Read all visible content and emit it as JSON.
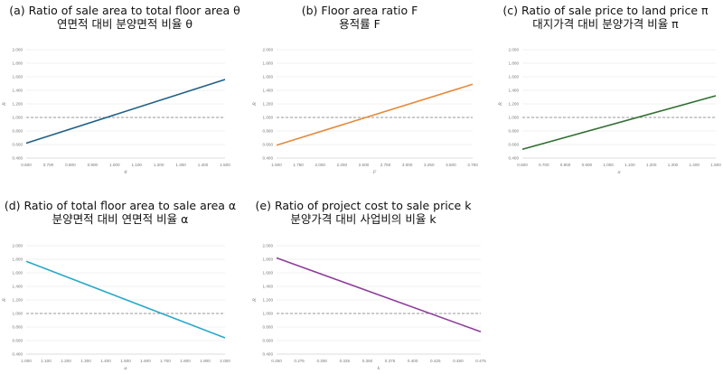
{
  "chart_data": [
    {
      "type": "line",
      "title": "(a) Ratio of sale area to total floor area θ",
      "subtitle": "연면적 대비 분양면적 비율 θ",
      "xlabel": "θ",
      "ylabel": "R",
      "x": [
        0.6,
        1.5
      ],
      "y": [
        0.62,
        1.56
      ],
      "xlim": [
        0.6,
        1.5
      ],
      "ylim": [
        0.4,
        2.0
      ],
      "x_ticks": [
        "0.600",
        "0.700",
        "0.800",
        "0.900",
        "1.000",
        "1.100",
        "1.200",
        "1.300",
        "1.400",
        "1.500"
      ],
      "y_ticks": [
        "0.400",
        "0.600",
        "0.800",
        "1.000",
        "1.200",
        "1.400",
        "1.600",
        "1.800",
        "2.000"
      ],
      "reference_line": 1.0,
      "color": "#1f5f86"
    },
    {
      "type": "line",
      "title": "(b) Floor area ratio F",
      "subtitle": "용적률 F",
      "xlabel": "F",
      "ylabel": "R",
      "x": [
        1.5,
        3.75
      ],
      "y": [
        0.59,
        1.49
      ],
      "xlim": [
        1.5,
        3.75
      ],
      "ylim": [
        0.4,
        2.0
      ],
      "x_ticks": [
        "1.500",
        "1.750",
        "2.000",
        "2.250",
        "2.500",
        "2.750",
        "3.000",
        "3.250",
        "3.500",
        "3.750"
      ],
      "y_ticks": [
        "0.400",
        "0.600",
        "0.800",
        "1.000",
        "1.200",
        "1.400",
        "1.600",
        "1.800",
        "2.000"
      ],
      "reference_line": 1.0,
      "color": "#e58a3a"
    },
    {
      "type": "line",
      "title": "(c) Ratio of sale price to land price π",
      "subtitle": "대지가격 대비 분양가격 비율 π",
      "xlabel": "π",
      "ylabel": "R",
      "x": [
        0.6,
        1.5
      ],
      "y": [
        0.53,
        1.32
      ],
      "xlim": [
        0.6,
        1.5
      ],
      "ylim": [
        0.4,
        2.0
      ],
      "x_ticks": [
        "0.600",
        "0.700",
        "0.800",
        "0.900",
        "1.000",
        "1.100",
        "1.200",
        "1.300",
        "1.400",
        "1.500"
      ],
      "y_ticks": [
        "0.400",
        "0.600",
        "0.800",
        "1.000",
        "1.200",
        "1.400",
        "1.600",
        "1.800",
        "2.000"
      ],
      "reference_line": 1.0,
      "color": "#2f6e2f"
    },
    {
      "type": "line",
      "title": "(d) Ratio of total floor area to sale area α",
      "subtitle": "분양면적 대비 연면적 비율 α",
      "xlabel": "α",
      "ylabel": "R",
      "x": [
        1.0,
        2.0
      ],
      "y": [
        1.77,
        0.64
      ],
      "xlim": [
        1.0,
        2.0
      ],
      "ylim": [
        0.4,
        2.0
      ],
      "x_ticks": [
        "1.000",
        "1.100",
        "1.200",
        "1.300",
        "1.400",
        "1.500",
        "1.600",
        "1.700",
        "1.800",
        "1.900",
        "2.000"
      ],
      "y_ticks": [
        "0.400",
        "0.600",
        "0.800",
        "1.000",
        "1.200",
        "1.400",
        "1.600",
        "1.800",
        "2.000"
      ],
      "reference_line": 1.0,
      "color": "#2aa9c7"
    },
    {
      "type": "line",
      "title": "(e) Ratio of project cost to sale price k",
      "subtitle": "분양가격 대비 사업비의 비율 k",
      "xlabel": "k",
      "ylabel": "R",
      "x": [
        0.25,
        0.475
      ],
      "y": [
        1.82,
        0.73
      ],
      "xlim": [
        0.25,
        0.475
      ],
      "ylim": [
        0.4,
        2.0
      ],
      "x_ticks": [
        "0.250",
        "0.275",
        "0.300",
        "0.325",
        "0.350",
        "0.375",
        "0.400",
        "0.425",
        "0.450",
        "0.475"
      ],
      "y_ticks": [
        "0.400",
        "0.600",
        "0.800",
        "1.000",
        "1.200",
        "1.400",
        "1.600",
        "1.800",
        "2.000"
      ],
      "reference_line": 1.0,
      "color": "#8e3f9a"
    }
  ]
}
